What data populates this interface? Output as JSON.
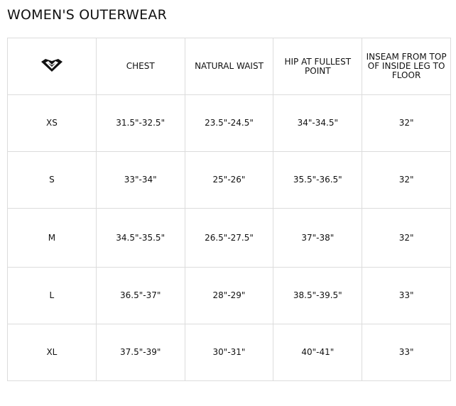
{
  "title": "WOMEN'S OUTERWEAR",
  "logo": "roxy-heart-logo",
  "headers": [
    "CHEST",
    "NATURAL WAIST",
    "HIP AT FULLEST POINT",
    "INSEAM FROM TOP OF INSIDE LEG TO FLOOR"
  ],
  "rows": [
    {
      "size": "XS",
      "values": [
        "31.5\"-32.5\"",
        "23.5\"-24.5\"",
        "34\"-34.5\"",
        "32\""
      ]
    },
    {
      "size": "S",
      "values": [
        "33\"-34\"",
        "25\"-26\"",
        "35.5\"-36.5\"",
        "32\""
      ]
    },
    {
      "size": "M",
      "values": [
        "34.5\"-35.5\"",
        "26.5\"-27.5\"",
        "37\"-38\"",
        "32\""
      ]
    },
    {
      "size": "L",
      "values": [
        "36.5\"-37\"",
        "28\"-29\"",
        "38.5\"-39.5\"",
        "33\""
      ]
    },
    {
      "size": "XL",
      "values": [
        "37.5\"-39\"",
        "30\"-31\"",
        "40\"-41\"",
        "33\""
      ]
    }
  ]
}
